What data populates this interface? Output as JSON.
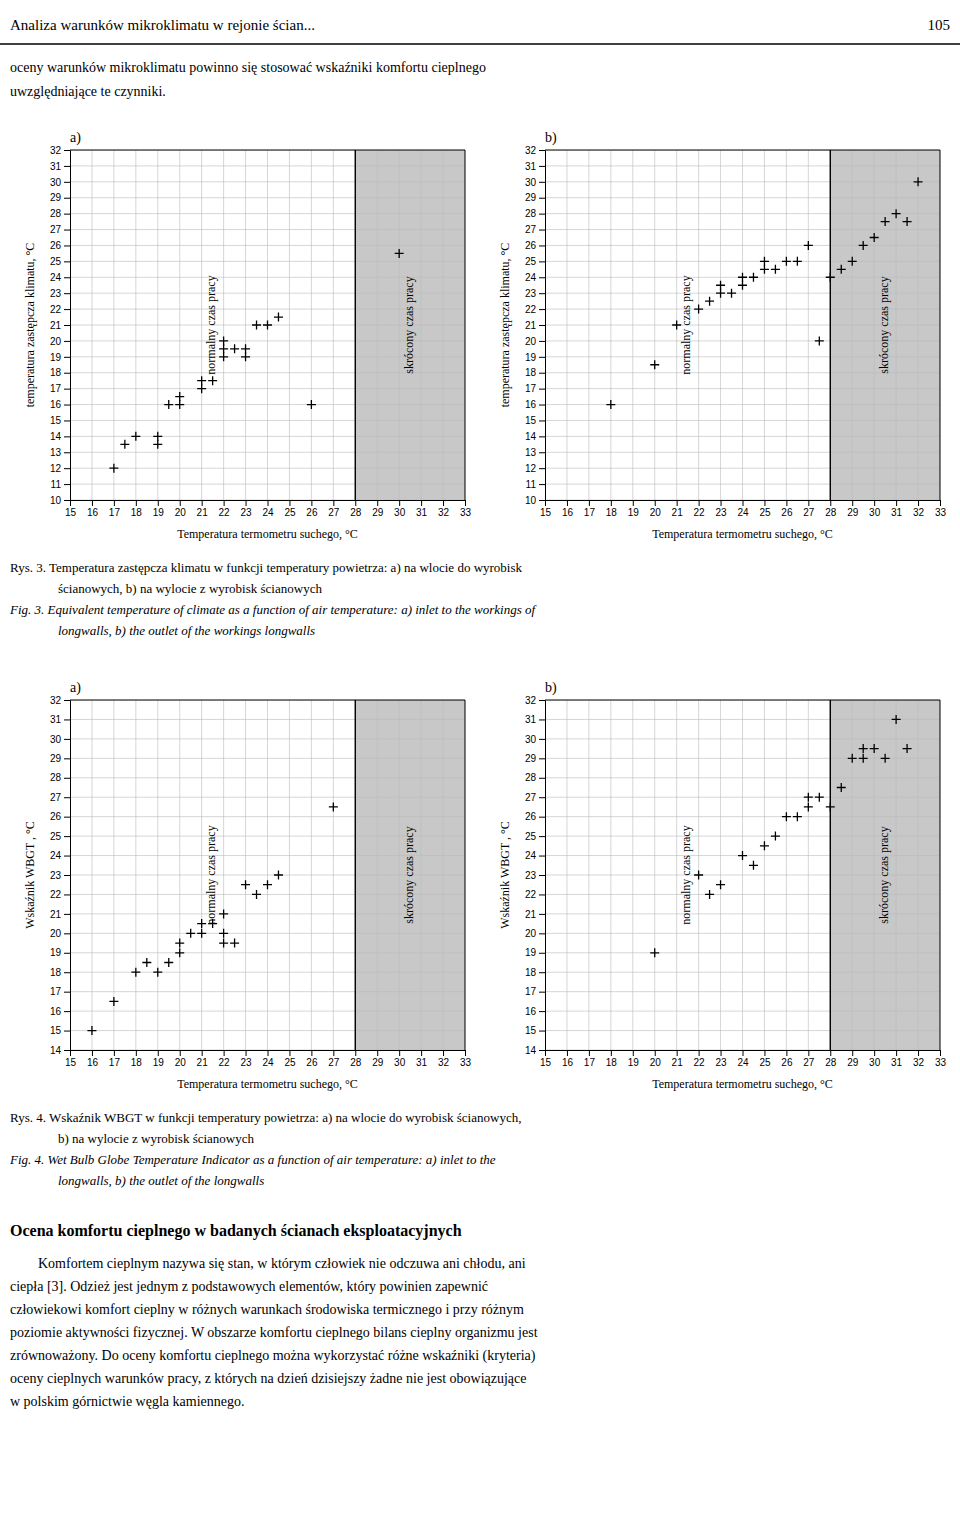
{
  "chart_data": [
    {
      "type": "scatter",
      "title": "a)",
      "xlabel": "Temperatura termometru suchego, °C",
      "ylabel": "temperatura zastępcza klimatu, °C",
      "x": [
        17,
        17.5,
        18,
        19,
        19,
        19.5,
        20,
        20,
        21,
        21,
        21.5,
        22,
        22,
        22,
        22.5,
        23,
        23,
        23.5,
        24,
        24.5,
        26,
        30
      ],
      "values": [
        12,
        13.5,
        14,
        14,
        13.5,
        16,
        16,
        16.5,
        17.5,
        17,
        17.5,
        19,
        19.5,
        20,
        19.5,
        19.5,
        19,
        21,
        21,
        21.5,
        16,
        25.5
      ],
      "color": "#000000",
      "marker": "plus",
      "xlim": [
        15,
        33
      ],
      "xticks": [
        15,
        16,
        17,
        18,
        19,
        20,
        21,
        22,
        23,
        24,
        25,
        26,
        27,
        28,
        29,
        30,
        31,
        32,
        33
      ],
      "ylim": [
        10,
        32
      ],
      "yticks": [
        10,
        11,
        12,
        13,
        14,
        15,
        16,
        17,
        18,
        19,
        20,
        21,
        22,
        23,
        24,
        25,
        26,
        27,
        28,
        29,
        30,
        31,
        32
      ],
      "grid": true,
      "regions": [
        {
          "x0": 15,
          "x1": 28,
          "label": "normalny czas pracy"
        },
        {
          "x0": 28,
          "x1": 33,
          "label": "skrócony czas pracy",
          "color": "#c8c8c8"
        }
      ]
    },
    {
      "type": "scatter",
      "title": "b)",
      "xlabel": "Temperatura termometru suchego, °C",
      "ylabel": "temperatura zastępcza klimatu, °C",
      "x": [
        18,
        20,
        21,
        22,
        22.5,
        23,
        23,
        23.5,
        24,
        24,
        24.5,
        25,
        25,
        25.5,
        26,
        26.5,
        27,
        27.5,
        28,
        28.5,
        29,
        29.5,
        30,
        30.5,
        31,
        31.5,
        32
      ],
      "values": [
        16,
        18.5,
        21,
        22,
        22.5,
        23,
        23.5,
        23,
        23.5,
        24,
        24,
        24.5,
        25,
        24.5,
        25,
        25,
        26,
        20,
        24,
        24.5,
        25,
        26,
        26.5,
        27.5,
        28,
        27.5,
        30
      ],
      "color": "#000000",
      "marker": "plus",
      "xlim": [
        15,
        33
      ],
      "xticks": [
        15,
        16,
        17,
        18,
        19,
        20,
        21,
        22,
        23,
        24,
        25,
        26,
        27,
        28,
        29,
        30,
        31,
        32,
        33
      ],
      "ylim": [
        10,
        32
      ],
      "yticks": [
        10,
        11,
        12,
        13,
        14,
        15,
        16,
        17,
        18,
        19,
        20,
        21,
        22,
        23,
        24,
        25,
        26,
        27,
        28,
        29,
        30,
        31,
        32
      ],
      "grid": true,
      "regions": [
        {
          "x0": 15,
          "x1": 28,
          "label": "normalny czas pracy"
        },
        {
          "x0": 28,
          "x1": 33,
          "label": "skrócony czas pracy",
          "color": "#c8c8c8"
        }
      ]
    },
    {
      "type": "scatter",
      "title": "a)",
      "xlabel": "Temperatura termometru suchego, °C",
      "ylabel": "Wskaźnik WBGT , °C",
      "x": [
        16,
        17,
        18,
        18.5,
        19,
        19.5,
        20,
        20,
        20.5,
        21,
        21,
        21.5,
        22,
        22,
        22,
        22.5,
        23,
        23.5,
        24,
        24.5,
        27
      ],
      "values": [
        15,
        16.5,
        18,
        18.5,
        18,
        18.5,
        19.5,
        19,
        20,
        20.5,
        20,
        20.5,
        21,
        20,
        19.5,
        19.5,
        22.5,
        22,
        22.5,
        23,
        26.5
      ],
      "color": "#000000",
      "marker": "plus",
      "xlim": [
        15,
        33
      ],
      "xticks": [
        15,
        16,
        17,
        18,
        19,
        20,
        21,
        22,
        23,
        24,
        25,
        26,
        27,
        28,
        29,
        30,
        31,
        32,
        33
      ],
      "ylim": [
        14,
        32
      ],
      "yticks": [
        14,
        15,
        16,
        17,
        18,
        19,
        20,
        21,
        22,
        23,
        24,
        25,
        26,
        27,
        28,
        29,
        30,
        31,
        32
      ],
      "grid": true,
      "regions": [
        {
          "x0": 15,
          "x1": 28,
          "label": "normalny czas pracy"
        },
        {
          "x0": 28,
          "x1": 33,
          "label": "skrócony czas pracy",
          "color": "#c8c8c8"
        }
      ]
    },
    {
      "type": "scatter",
      "title": "b)",
      "xlabel": "Temperatura termometru suchego, °C",
      "ylabel": "Wskaźnik WBGT , °C",
      "x": [
        20,
        22,
        22.5,
        23,
        24,
        24.5,
        25,
        25.5,
        26,
        26.5,
        27,
        27,
        27.5,
        28,
        28.5,
        29,
        29.5,
        29.5,
        30,
        30.5,
        31,
        31.5
      ],
      "values": [
        19,
        23,
        22,
        22.5,
        24,
        23.5,
        24.5,
        25,
        26,
        26,
        26.5,
        27,
        27,
        26.5,
        27.5,
        29,
        29,
        29.5,
        29.5,
        29,
        31,
        29.5
      ],
      "color": "#000000",
      "marker": "plus",
      "xlim": [
        15,
        33
      ],
      "xticks": [
        15,
        16,
        17,
        18,
        19,
        20,
        21,
        22,
        23,
        24,
        25,
        26,
        27,
        28,
        29,
        30,
        31,
        32,
        33
      ],
      "ylim": [
        14,
        32
      ],
      "yticks": [
        14,
        15,
        16,
        17,
        18,
        19,
        20,
        21,
        22,
        23,
        24,
        25,
        26,
        27,
        28,
        29,
        30,
        31,
        32
      ],
      "grid": true,
      "regions": [
        {
          "x0": 15,
          "x1": 28,
          "label": "normalny czas pracy"
        },
        {
          "x0": 28,
          "x1": 33,
          "label": "skrócony czas pracy",
          "color": "#c8c8c8"
        }
      ]
    }
  ],
  "page": {
    "header_title": "Analiza warunków mikroklimatu w rejonie ścian...",
    "header_page": "105",
    "intro_lines": [
      "oceny warunków mikroklimatu powinno się stosować wskaźniki komfortu cieplnego",
      "uwzględniające te czynniki."
    ],
    "captions": [
      [
        "Rys. 3. Temperatura zastępcza klimatu w funkcji temperatury powietrza: a) na wlocie do wyrobisk",
        "ścianowych, b) na wylocie z wyrobisk ścianowych",
        "Fig. 3. Equivalent temperature of climate as a function of air temperature: a) inlet to the workings of",
        "longwalls, b) the outlet of the workings longwalls"
      ],
      [
        "Rys. 4. Wskaźnik WBGT w funkcji temperatury powietrza: a) na wlocie do wyrobisk ścianowych,",
        "b) na wylocie z wyrobisk ścianowych",
        "Fig. 4. Wet Bulb Globe Temperature Indicator as a function of air temperature: a) inlet to the",
        "longwalls, b) the outlet of the longwalls"
      ]
    ],
    "section_title": "Ocena komfortu cieplnego w badanych ścianach eksploatacyjnych",
    "body_lines": [
      "        Komfortem cieplnym nazywa się stan, w którym człowiek nie odczuwa ani chłodu, ani",
      "ciepła [3]. Odzież jest jednym z podstawowych elementów, który powinien zapewnić",
      "człowiekowi komfort cieplny w różnych warunkach środowiska termicznego i przy różnym",
      "poziomie aktywności fizycznej. W obszarze komfortu cieplnego bilans cieplny organizmu jest",
      "zrównoważony. Do oceny komfortu cieplnego można wykorzystać różne wskaźniki (kryteria)",
      "oceny cieplnych warunków pracy, z których na dzień dzisiejszy żadne nie jest obowiązujące",
      "w polskim górnictwie węgla kamiennego."
    ]
  }
}
